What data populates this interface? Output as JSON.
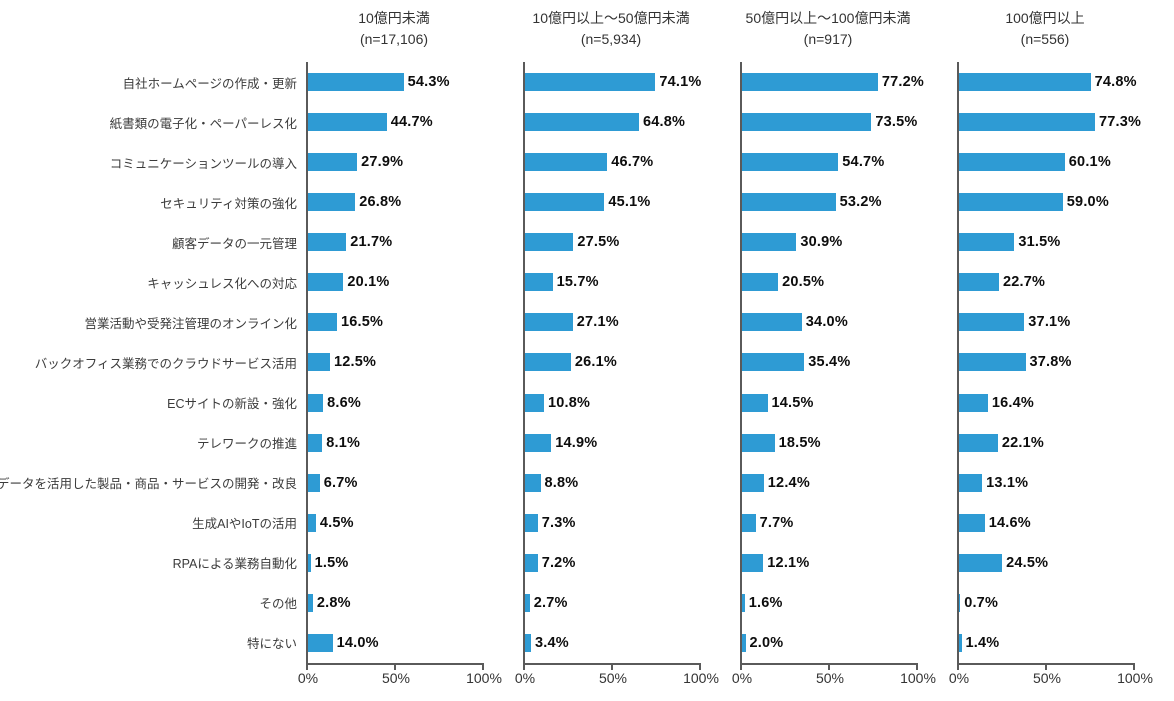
{
  "chart_data": {
    "type": "bar",
    "orientation": "horizontal",
    "title": "",
    "categories": [
      "自社ホームページの作成・更新",
      "紙書類の電子化・ペーパーレス化",
      "コミュニケーションツールの導入",
      "セキュリティ対策の強化",
      "顧客データの一元管理",
      "キャッシュレス化への対応",
      "営業活動や受発注管理のオンライン化",
      "バックオフィス業務でのクラウドサービス活用",
      "ECサイトの新設・強化",
      "テレワークの推進",
      "データを活用した製品・商品・サービスの開発・改良",
      "生成AIやIoTの活用",
      "RPAによる業務自動化",
      "その他",
      "特にない"
    ],
    "series": [
      {
        "name": "10億円未満",
        "n_label": "(n=17,106)",
        "values": [
          54.3,
          44.7,
          27.9,
          26.8,
          21.7,
          20.1,
          16.5,
          12.5,
          8.6,
          8.1,
          6.7,
          4.5,
          1.5,
          2.8,
          14.0
        ]
      },
      {
        "name": "10億円以上～50億円未満",
        "n_label": "(n=5,934)",
        "values": [
          74.1,
          64.8,
          46.7,
          45.1,
          27.5,
          15.7,
          27.1,
          26.1,
          10.8,
          14.9,
          8.8,
          7.3,
          7.2,
          2.7,
          3.4
        ]
      },
      {
        "name": "50億円以上～100億円未満",
        "n_label": "(n=917)",
        "values": [
          77.2,
          73.5,
          54.7,
          53.2,
          30.9,
          20.5,
          34.0,
          35.4,
          14.5,
          18.5,
          12.4,
          7.7,
          12.1,
          1.6,
          2.0
        ]
      },
      {
        "name": "100億円以上",
        "n_label": "(n=556)",
        "values": [
          74.8,
          77.3,
          60.1,
          59.0,
          31.5,
          22.7,
          37.1,
          37.8,
          16.4,
          22.1,
          13.1,
          14.6,
          24.5,
          0.7,
          1.4
        ]
      }
    ],
    "xlim": [
      0,
      100
    ],
    "x_ticks": [
      "0%",
      "50%",
      "100%"
    ],
    "x_tick_positions": [
      0,
      50,
      100
    ],
    "value_suffix": "%",
    "bar_color": "#2e9bd4",
    "axis_color": "#5a5a5a",
    "legend": "none",
    "grid": "off"
  }
}
